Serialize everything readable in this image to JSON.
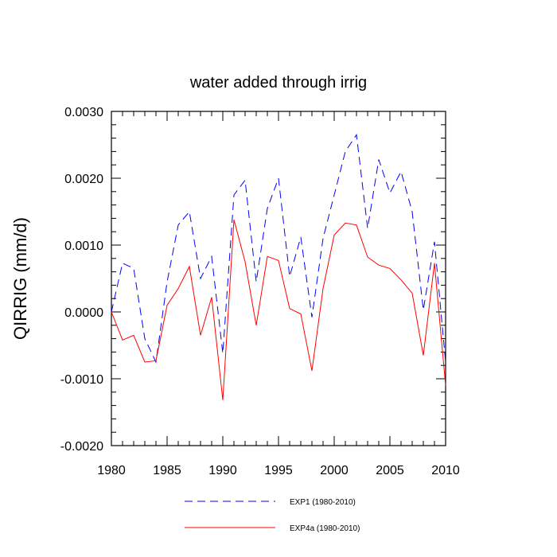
{
  "chart_data": {
    "type": "line",
    "title": "water added through irrig",
    "xlabel": "",
    "ylabel": "QIRRIG  (mm/d)",
    "xlim": [
      1980,
      2010
    ],
    "ylim": [
      -0.002,
      0.003
    ],
    "x_ticks": [
      1980,
      1985,
      1990,
      1995,
      2000,
      2005,
      2010
    ],
    "y_ticks": [
      -0.002,
      -0.001,
      0.0,
      0.001,
      0.002,
      0.003
    ],
    "y_tick_labels": [
      "-0.0020",
      "-0.0010",
      "0.0000",
      "0.0010",
      "0.0020",
      "0.0030"
    ],
    "x_tick_labels": [
      "1980",
      "1985",
      "1990",
      "1995",
      "2000",
      "2005",
      "2010"
    ],
    "x": [
      1980,
      1981,
      1982,
      1983,
      1984,
      1985,
      1986,
      1987,
      1988,
      1989,
      1990,
      1991,
      1992,
      1993,
      1994,
      1995,
      1996,
      1997,
      1998,
      1999,
      2000,
      2001,
      2002,
      2003,
      2004,
      2005,
      2006,
      2007,
      2008,
      2009,
      2010
    ],
    "series": [
      {
        "name": "EXP1 (1980-2010)",
        "color": "#0000ff",
        "dash": "dashed",
        "values": [
          0.0,
          0.00073,
          0.00065,
          -0.0004,
          -0.00075,
          0.00045,
          0.0013,
          0.0015,
          0.0005,
          0.00083,
          -0.00062,
          0.00175,
          0.00197,
          0.00045,
          0.00155,
          0.002,
          0.00053,
          0.00112,
          -8e-05,
          0.0011,
          0.00175,
          0.0024,
          0.00265,
          0.00125,
          0.00228,
          0.00178,
          0.0021,
          0.0015,
          3e-05,
          0.00105,
          -0.00075
        ]
      },
      {
        "name": "EXP4a (1980-2010)",
        "color": "#ff0000",
        "dash": "solid",
        "values": [
          0.0,
          -0.00042,
          -0.00035,
          -0.00075,
          -0.00073,
          0.0001,
          0.00035,
          0.00068,
          -0.00035,
          0.00022,
          -0.00132,
          0.00138,
          0.00075,
          -0.0002,
          0.00083,
          0.00077,
          5e-05,
          -3e-05,
          -0.00088,
          0.00035,
          0.00115,
          0.00133,
          0.0013,
          0.00082,
          0.0007,
          0.00065,
          0.00048,
          0.00028,
          -0.00065,
          0.00073,
          -0.0011
        ]
      }
    ],
    "legend_position": "bottom"
  }
}
